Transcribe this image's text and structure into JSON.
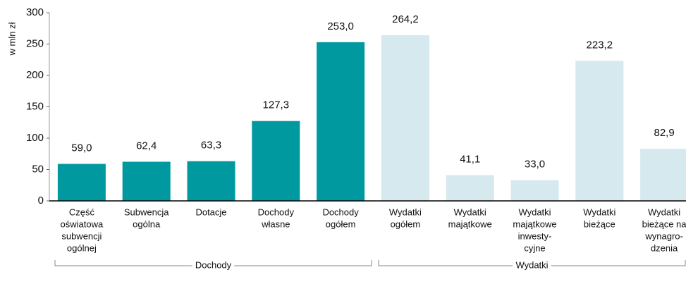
{
  "chart_data": {
    "type": "bar",
    "y_label": "w mln zł",
    "categories": [
      [
        "Część",
        "oświatowa",
        "subwencji",
        "ogólnej"
      ],
      [
        "Subwencja",
        "ogólna"
      ],
      [
        "Dotacje"
      ],
      [
        "Dochody",
        "własne"
      ],
      [
        "Dochody",
        "ogółem"
      ],
      [
        "Wydatki",
        "ogółem"
      ],
      [
        "Wydatki",
        "majątkowe"
      ],
      [
        "Wydatki",
        "majątkowe",
        "inwesty-",
        "cyjne"
      ],
      [
        "Wydatki",
        "bieżące"
      ],
      [
        "Wydatki",
        "bieżące na",
        "wynagro-",
        "dzenia"
      ]
    ],
    "series": [
      {
        "name": "Dochody",
        "color": "#00999f",
        "values": [
          59.0,
          62.4,
          63.3,
          127.3,
          253.0,
          null,
          null,
          null,
          null,
          null
        ],
        "value_labels": [
          "59,0",
          "62,4",
          "63,3",
          "127,3",
          "253,0",
          null,
          null,
          null,
          null,
          null
        ]
      },
      {
        "name": "Wydatki",
        "color": "#d6e9ef",
        "values": [
          null,
          null,
          null,
          null,
          null,
          264.2,
          41.1,
          33.0,
          223.2,
          82.9
        ],
        "value_labels": [
          null,
          null,
          null,
          null,
          null,
          "264,2",
          "41,1",
          "33,0",
          "223,2",
          "82,9"
        ]
      }
    ],
    "ylim": [
      0,
      300
    ],
    "yticks": [
      0,
      50,
      100,
      150,
      200,
      250,
      300
    ],
    "grid": false
  }
}
